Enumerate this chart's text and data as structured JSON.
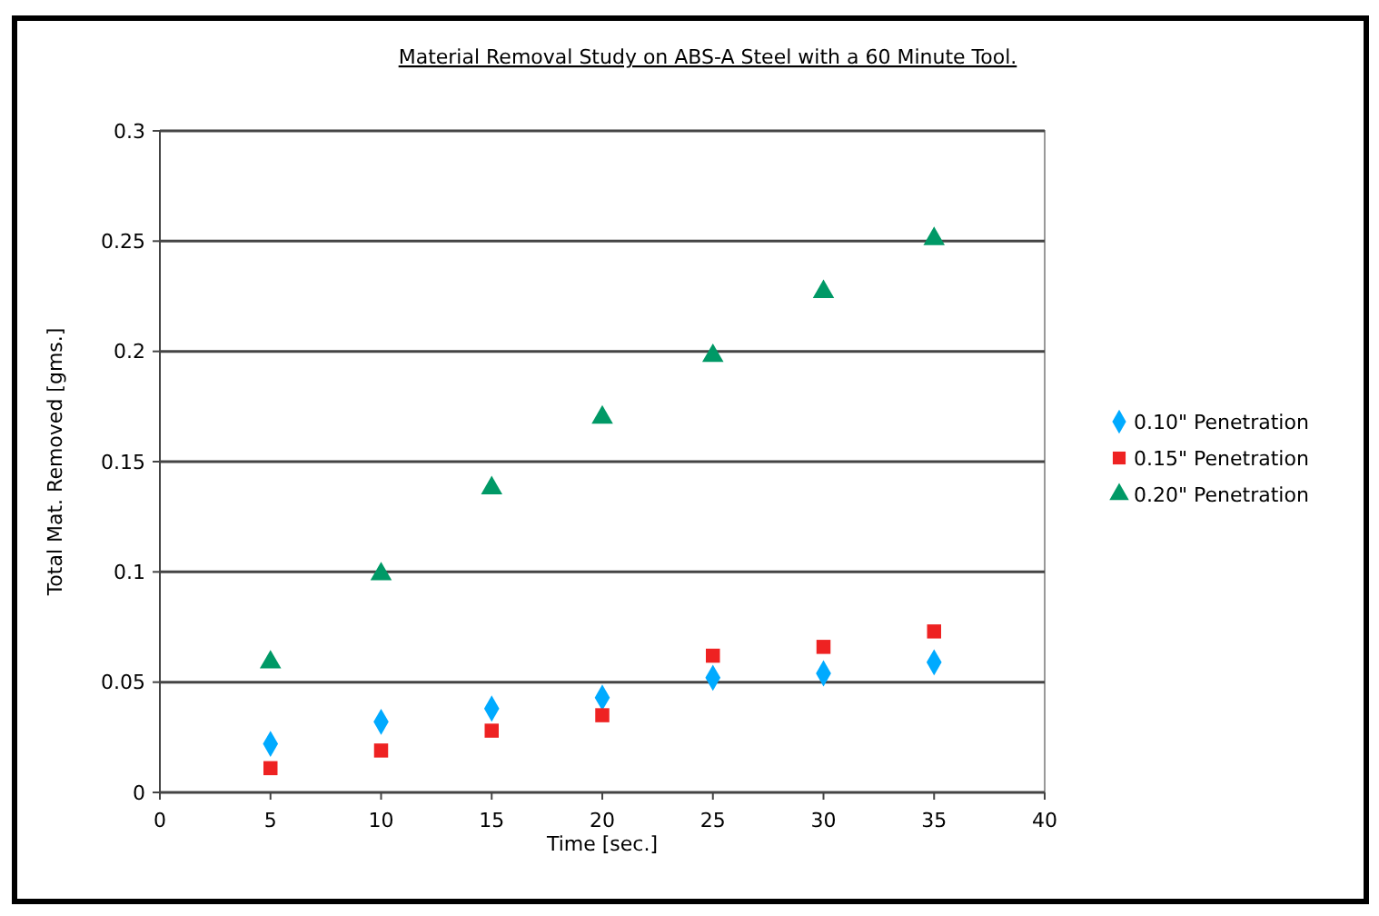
{
  "chart_data": {
    "type": "scatter",
    "title": "Material Removal Study on ABS-A Steel with a 60 Minute Tool.",
    "xlabel": "Time [sec.]",
    "ylabel": "Total Mat. Removed [gms.]",
    "x": [
      5,
      10,
      15,
      20,
      25,
      30,
      35
    ],
    "series": [
      {
        "name": "0.10\" Penetration",
        "color": "#00aaff",
        "marker": "diamond",
        "values": [
          0.022,
          0.032,
          0.038,
          0.043,
          0.052,
          0.054,
          0.059
        ]
      },
      {
        "name": "0.15\" Penetration",
        "color": "#ee2222",
        "marker": "square",
        "values": [
          0.011,
          0.019,
          0.028,
          0.035,
          0.062,
          0.066,
          0.073
        ]
      },
      {
        "name": "0.20\" Penetration",
        "color": "#009966",
        "marker": "triangle",
        "values": [
          0.059,
          0.099,
          0.138,
          0.17,
          0.198,
          0.227,
          0.251
        ]
      }
    ],
    "xlim": [
      0,
      40
    ],
    "xticks": [
      0,
      5,
      10,
      15,
      20,
      25,
      30,
      35,
      40
    ],
    "ylim": [
      0,
      0.3
    ],
    "yticks": [
      0,
      0.05,
      0.1,
      0.15,
      0.2,
      0.25,
      0.3
    ],
    "grid": "y",
    "legend": "right"
  }
}
